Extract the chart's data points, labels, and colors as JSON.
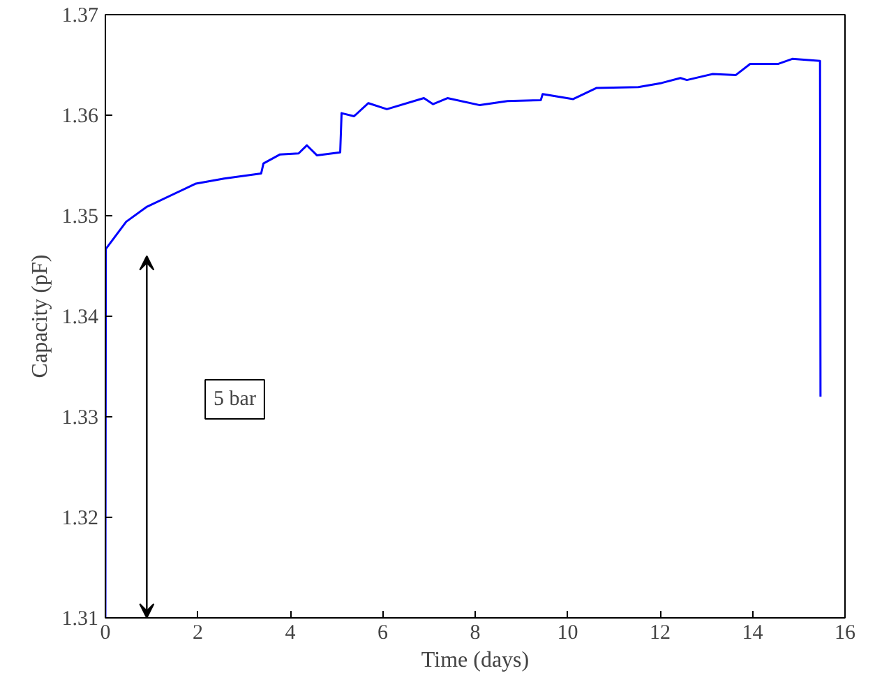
{
  "chart_data": {
    "type": "line",
    "xlabel": "Time (days)",
    "ylabel": "Capacity (pF)",
    "xlim": [
      0,
      16
    ],
    "ylim": [
      1.31,
      1.37
    ],
    "xticks": [
      0,
      2,
      4,
      6,
      8,
      10,
      12,
      14,
      16
    ],
    "yticks": [
      1.31,
      1.32,
      1.33,
      1.34,
      1.35,
      1.36,
      1.37
    ],
    "grid": false,
    "marker": "none",
    "line_style": "solid",
    "annotations": [
      "5 bar"
    ],
    "series": [
      {
        "color": "#0000ff",
        "x": [
          0,
          0.01,
          0.45,
          0.9,
          1.96,
          2.57,
          3.37,
          3.42,
          3.78,
          4.18,
          4.36,
          4.58,
          5.08,
          5.11,
          5.38,
          5.69,
          6.09,
          6.89,
          7.09,
          7.4,
          8.1,
          8.7,
          9.42,
          9.46,
          10.12,
          10.62,
          11.53,
          12.03,
          12.44,
          12.58,
          13.14,
          13.64,
          13.95,
          14.55,
          14.86,
          15.46,
          15.47
        ],
        "values": [
          1.31,
          1.3467,
          1.3494,
          1.3509,
          1.3532,
          1.3537,
          1.3542,
          1.3552,
          1.3561,
          1.3562,
          1.357,
          1.356,
          1.3563,
          1.3602,
          1.3599,
          1.3612,
          1.3606,
          1.3617,
          1.3611,
          1.3617,
          1.361,
          1.3614,
          1.3615,
          1.3621,
          1.3616,
          1.3627,
          1.3628,
          1.3632,
          1.3637,
          1.3635,
          1.3641,
          1.364,
          1.3651,
          1.3651,
          1.3656,
          1.3654,
          1.332
        ]
      }
    ]
  }
}
